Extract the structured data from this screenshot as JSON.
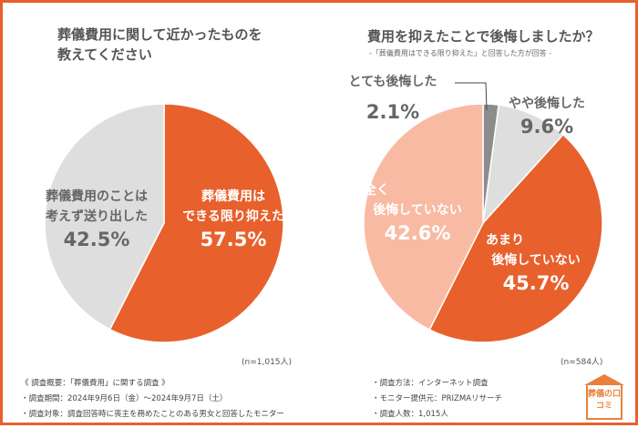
{
  "colors": {
    "orange": "#e8602c",
    "light_gray": "#dedede",
    "dark_gray": "#8c8c8c",
    "pink": "#f9baa3",
    "border": "#e8602c"
  },
  "chart_data": [
    {
      "type": "pie",
      "title": "葬儀費用に関して近かったものを教えてください",
      "title_lines": [
        "葬儀費用に関して近かったものを",
        "教えてください"
      ],
      "slices": [
        {
          "label": "葬儀費用はできる限り抑えた",
          "label_lines": [
            "葬儀費用は",
            "できる限り抑えた"
          ],
          "value": 57.5,
          "display": "57.5%",
          "color": "#e8602c"
        },
        {
          "label": "葬儀費用のことは考えず送り出した",
          "label_lines": [
            "葬儀費用のことは",
            "考えず送り出した"
          ],
          "value": 42.5,
          "display": "42.5%",
          "color": "#dedede"
        }
      ],
      "n": "(n=1,015人)"
    },
    {
      "type": "pie",
      "title": "費用を抑えたことで後悔しましたか？",
      "subtitle": "-「葬儀費用はできる限り抑えた」と回答した方が回答 -",
      "slices": [
        {
          "label": "とても後悔した",
          "value": 2.1,
          "display": "2.1%",
          "color": "#8c8c8c"
        },
        {
          "label": "やや後悔した",
          "value": 9.6,
          "display": "9.6%",
          "color": "#dedede"
        },
        {
          "label": "あまり後悔していない",
          "label_lines": [
            "あまり",
            "後悔していない"
          ],
          "value": 45.7,
          "display": "45.7%",
          "color": "#e8602c"
        },
        {
          "label": "全く後悔していない",
          "label_lines": [
            "全く",
            "後悔していない"
          ],
          "value": 42.6,
          "display": "42.6%",
          "color": "#f9baa3"
        }
      ],
      "n": "(n=584人)"
    }
  ],
  "notes_left": [
    "《 調査概要：「葬儀費用」に関する調査 》",
    "・調査期間：2024年9月6日（金）～2024年9月7日（土）",
    "・調査対象：調査回答時に喪主を務めたことのある男女と回答したモニター"
  ],
  "notes_right": [
    "・調査方法：インターネット調査",
    "・モニター提供元：PRIZMAリサーチ",
    "・調査人数：1,015人"
  ],
  "logo": {
    "text": "葬儀の口コミ"
  }
}
